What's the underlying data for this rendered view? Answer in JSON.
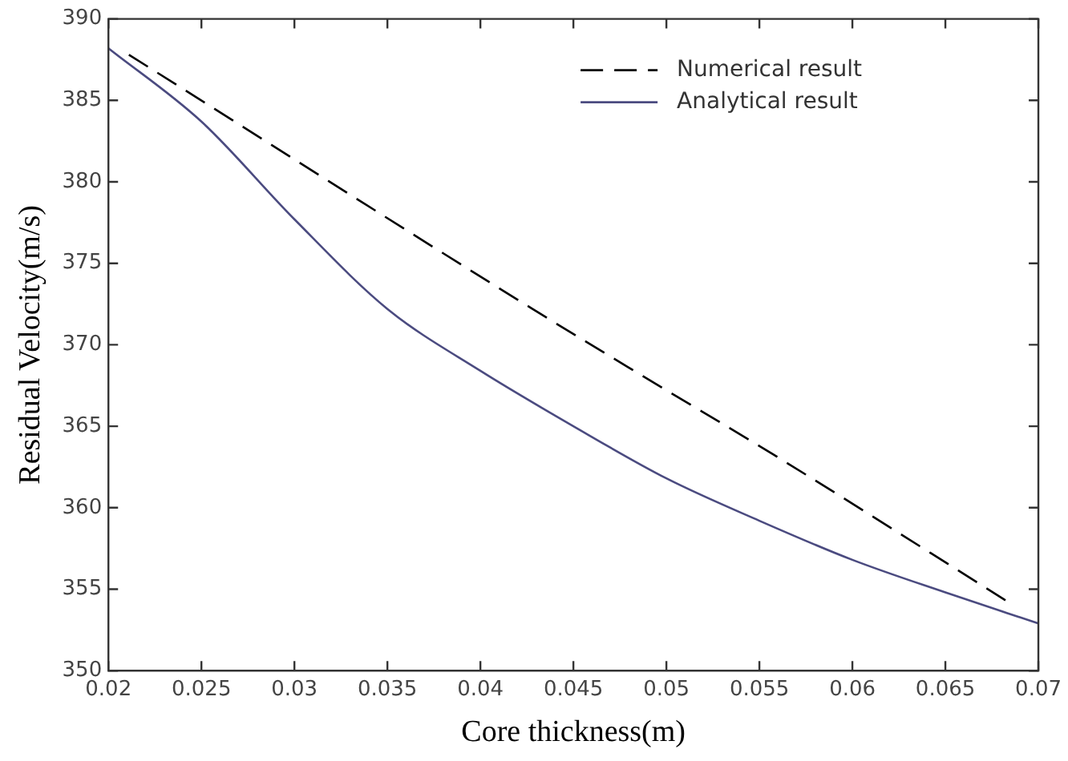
{
  "chart_data": {
    "type": "line",
    "xlabel": "Core thickness(m)",
    "ylabel": "Residual Velocity(m/s)",
    "xlim": [
      0.02,
      0.07
    ],
    "xticks": [
      0.02,
      0.025,
      0.03,
      0.035,
      0.04,
      0.045,
      0.05,
      0.055,
      0.06,
      0.065,
      0.07
    ],
    "ylim": [
      350,
      390
    ],
    "yticks": [
      350,
      355,
      360,
      365,
      370,
      375,
      380,
      385,
      390
    ],
    "grid": false,
    "legend": "top right",
    "marker": "none",
    "series": [
      {
        "name": "Numerical result",
        "color": "#000000",
        "line_style": "dashed",
        "x": [
          0.0211,
          0.0428,
          0.0487,
          0.0557,
          0.0684
        ],
        "values": [
          387.8,
          372.2,
          368.1,
          363.3,
          354.2
        ]
      },
      {
        "name": "Analytical result",
        "color": "#4b4b80",
        "line_style": "solid",
        "x": [
          0.02,
          0.025,
          0.03,
          0.035,
          0.04,
          0.045,
          0.05,
          0.055,
          0.06,
          0.065,
          0.07
        ],
        "values": [
          388.2,
          383.7,
          377.7,
          372.2,
          368.4,
          365.0,
          361.8,
          359.2,
          356.8,
          354.8,
          352.9
        ]
      }
    ]
  }
}
